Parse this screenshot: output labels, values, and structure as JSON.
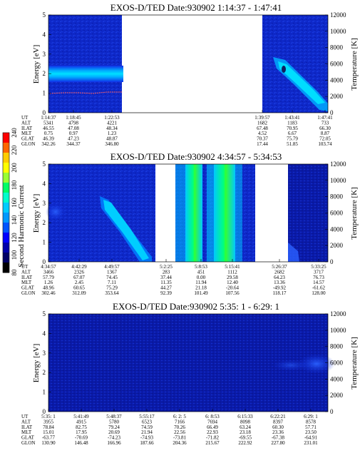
{
  "colorbar": {
    "label": "Second Harmonic Current",
    "ticks": [
      "240",
      "220",
      "200",
      "180",
      "160",
      "140",
      "120",
      "100",
      "80"
    ],
    "colors": [
      "#ff0000",
      "#ff6600",
      "#ffcc00",
      "#ffff00",
      "#99ff33",
      "#00ff66",
      "#00ffcc",
      "#00ccff",
      "#0099ff",
      "#0055ff",
      "#0000ff",
      "#0000aa",
      "#000066",
      "#000000"
    ]
  },
  "panels": [
    {
      "title": "EXOS-D/TED   Date:930902   1:14:37 - 1:47:41",
      "ylabel_left": "Energy [eV]",
      "ylabel_right": "Temperature [K]",
      "y_ticks": [
        "5",
        "4",
        "3",
        "2",
        "1",
        "0"
      ],
      "t_ticks": [
        "12000",
        "10000",
        "8000",
        "6000",
        "4000",
        "2000",
        "0"
      ],
      "row_labels": [
        "UT",
        "ALT",
        "ILAT",
        "MLT",
        "GLAT",
        "GLON"
      ],
      "columns": [
        {
          "values": [
            "1:14:37",
            "5341",
            "46.55",
            "0.75",
            "46.39",
            "342.26"
          ]
        },
        {
          "values": [
            "1:18:45",
            "4798",
            "47.08",
            "0.97",
            "47.23",
            "344.37"
          ]
        },
        {
          "values": [
            "1:22:53",
            "4221",
            "48.34",
            "1.23",
            "48.87",
            "346.80"
          ]
        },
        {
          "values": [
            "1:39:57",
            "1682",
            "67.48",
            "4.52",
            "70.37",
            "17.44"
          ]
        },
        {
          "values": [
            "1:43:41",
            "1183",
            "70.95",
            "6.67",
            "75.79",
            "51.85"
          ]
        },
        {
          "values": [
            "1:47:41",
            "733",
            "66.30",
            "8.87",
            "72.05",
            "103.74"
          ]
        }
      ]
    },
    {
      "title": "EXOS-D/TED   Date:930902   4:34:57 - 5:34:53",
      "ylabel_left": "Energy [eV]",
      "ylabel_right": "Temperature [K]",
      "y_ticks": [
        "5",
        "4",
        "3",
        "2",
        "1",
        "0"
      ],
      "t_ticks": [
        "12000",
        "10000",
        "8000",
        "6000",
        "4000",
        "2000",
        "0"
      ],
      "row_labels": [
        "UT",
        "ALT",
        "ILAT",
        "MLT",
        "GLAT",
        "GLON"
      ],
      "columns": [
        {
          "values": [
            "4:34:57",
            "3466",
            "57.79",
            "1.26",
            "48.96",
            "302.46"
          ]
        },
        {
          "values": [
            "4:42:29",
            "2326",
            "67.07",
            "2.45",
            "60.65",
            "312.09"
          ]
        },
        {
          "values": [
            "4:49:57",
            "1367",
            "74.45",
            "7.11",
            "75.29",
            "353.64"
          ]
        },
        {
          "values": [
            "5:2:25",
            "283",
            "37.44",
            "11.35",
            "44.27",
            "92.39"
          ]
        },
        {
          "values": [
            "5:8:53",
            "451",
            "0.00",
            "11.94",
            "21.18",
            "101.49"
          ]
        },
        {
          "values": [
            "5:15:41",
            "1112",
            "29.58",
            "12.40",
            "-20.64",
            "107.56"
          ]
        },
        {
          "values": [
            "5:26:37",
            "2682",
            "64.23",
            "13.36",
            "-49.92",
            "118.17"
          ]
        },
        {
          "values": [
            "5:33:25",
            "3717",
            "76.73",
            "14.57",
            "-61.62",
            "128.00"
          ]
        }
      ]
    },
    {
      "title": "EXOS-D/TED   Date:930902   5:35: 1 - 6:29: 1",
      "ylabel_left": "Energy [eV]",
      "ylabel_right": "Temperature [K]",
      "y_ticks": [
        "5",
        "4",
        "3",
        "2",
        "1",
        "0"
      ],
      "t_ticks": [
        "12000",
        "10000",
        "8000",
        "6000",
        "4000",
        "2000",
        "0"
      ],
      "row_labels": [
        "UT",
        "ALT",
        "ILAT",
        "MLT",
        "GLAT",
        "GLON"
      ],
      "columns": [
        {
          "values": [
            "5:35: 1",
            "3955",
            "78.84",
            "15.01",
            "-63.77",
            "130.90"
          ]
        },
        {
          "values": [
            "5:41:49",
            "4915",
            "82.75",
            "17.95",
            "-70.69",
            "146.48"
          ]
        },
        {
          "values": [
            "5:48:37",
            "5780",
            "79.24",
            "20.69",
            "-74.23",
            "166.96"
          ]
        },
        {
          "values": [
            "5:55:17",
            "6523",
            "74.59",
            "21.94",
            "-74.93",
            "187.66"
          ]
        },
        {
          "values": [
            "6: 2: 5",
            "7166",
            "70.26",
            "22.56",
            "-73.81",
            "204.36"
          ]
        },
        {
          "values": [
            "6: 8:53",
            "7694",
            "66.49",
            "22.93",
            "-71.82",
            "215.67"
          ]
        },
        {
          "values": [
            "6:15:33",
            "8098",
            "63.24",
            "23.18",
            "-69.55",
            "222.92"
          ]
        },
        {
          "values": [
            "6:22:21",
            "8397",
            "60.30",
            "23.36",
            "-67.38",
            "227.80"
          ]
        },
        {
          "values": [
            "6:29: 1",
            "8578",
            "57.71",
            "23.50",
            "-64.91",
            "231.01"
          ]
        }
      ]
    }
  ],
  "chart_data": [
    {
      "type": "heatmap",
      "title": "EXOS-D/TED   Date:930902   1:14:37 - 1:47:41",
      "ylabel": "Energy [eV]",
      "ylabel_right": "Temperature [K]",
      "ylim": [
        0,
        5
      ],
      "ylim_right": [
        0,
        12000
      ],
      "color_scale": [
        80,
        240
      ],
      "color_label": "Second Harmonic Current",
      "x_ticks": [
        "1:14:37",
        "1:18:45",
        "1:22:53",
        "1:39:57",
        "1:43:41",
        "1:47:41"
      ],
      "no_data_interval": [
        "1:22:53",
        "1:39:57"
      ],
      "features": [
        {
          "name": "band",
          "x_start": "1:14:37",
          "x_end": "1:23:30",
          "energy": [
            1.8,
            2.3
          ]
        },
        {
          "name": "descending band",
          "x_start": "1:39:57",
          "x_end": "1:47:41",
          "energy_start": [
            2.0,
            2.7
          ],
          "energy_end": [
            0.3,
            0.8
          ]
        }
      ],
      "temperature_trace_K": {
        "x": [
          "1:14:37",
          "1:22:53"
        ],
        "values": [
          2500,
          2600
        ]
      }
    },
    {
      "type": "heatmap",
      "title": "EXOS-D/TED   Date:930902   4:34:57 - 5:34:53",
      "ylabel": "Energy [eV]",
      "ylabel_right": "Temperature [K]",
      "ylim": [
        0,
        5
      ],
      "ylim_right": [
        0,
        12000
      ],
      "color_scale": [
        80,
        240
      ],
      "color_label": "Second Harmonic Current",
      "x_ticks": [
        "4:34:57",
        "4:42:29",
        "4:49:57",
        "5:2:25",
        "5:8:53",
        "5:15:41",
        "5:26:37",
        "5:33:25"
      ],
      "no_data_intervals": [
        [
          "4:59:00",
          "5:2:25"
        ],
        [
          "5:17:00",
          "5:26:37"
        ]
      ],
      "features": [
        {
          "name": "descending band",
          "x_start": "4:45:00",
          "x_end": "4:58:00",
          "energy_start": [
            2.0,
            3.0
          ],
          "energy_end": [
            0.0,
            0.5
          ]
        },
        {
          "name": "broadband",
          "x_start": "5:2:25",
          "x_end": "5:15:41",
          "energy": [
            0,
            5
          ]
        }
      ]
    },
    {
      "type": "heatmap",
      "title": "EXOS-D/TED   Date:930902   5:35: 1 - 6:29: 1",
      "ylabel": "Energy [eV]",
      "ylabel_right": "Temperature [K]",
      "ylim": [
        0,
        5
      ],
      "ylim_right": [
        0,
        12000
      ],
      "color_scale": [
        80,
        240
      ],
      "color_label": "Second Harmonic Current",
      "x_ticks": [
        "5:35: 1",
        "5:41:49",
        "5:48:37",
        "5:55:17",
        "6: 2: 5",
        "6: 8:53",
        "6:15:33",
        "6:22:21",
        "6:29: 1"
      ],
      "features": [
        {
          "name": "weak band",
          "x_start": "6:15:33",
          "x_end": "6:29: 1",
          "energy": [
            2.2,
            2.8
          ]
        }
      ]
    }
  ]
}
